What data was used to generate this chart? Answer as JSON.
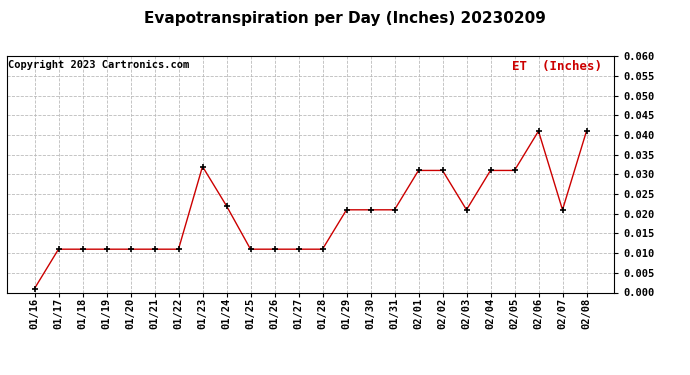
{
  "title": "Evapotranspiration per Day (Inches) 20230209",
  "copyright_text": "Copyright 2023 Cartronics.com",
  "legend_label": "ET  (Inches)",
  "legend_color": "#cc0000",
  "background_color": "#ffffff",
  "grid_color": "#bbbbbb",
  "line_color": "#cc0000",
  "marker_color": "#000000",
  "dates": [
    "01/16",
    "01/17",
    "01/18",
    "01/19",
    "01/20",
    "01/21",
    "01/22",
    "01/23",
    "01/24",
    "01/25",
    "01/26",
    "01/27",
    "01/28",
    "01/29",
    "01/30",
    "01/31",
    "02/01",
    "02/02",
    "02/03",
    "02/04",
    "02/05",
    "02/06",
    "02/07",
    "02/08"
  ],
  "values": [
    0.001,
    0.011,
    0.011,
    0.011,
    0.011,
    0.011,
    0.011,
    0.032,
    0.022,
    0.011,
    0.011,
    0.011,
    0.011,
    0.021,
    0.021,
    0.021,
    0.031,
    0.031,
    0.021,
    0.031,
    0.031,
    0.041,
    0.021,
    0.041
  ],
  "ylim": [
    0.0,
    0.06
  ],
  "yticks": [
    0.0,
    0.005,
    0.01,
    0.015,
    0.02,
    0.025,
    0.03,
    0.035,
    0.04,
    0.045,
    0.05,
    0.055,
    0.06
  ],
  "title_fontsize": 11,
  "tick_fontsize": 7.5,
  "copyright_fontsize": 7.5,
  "legend_fontsize": 9
}
